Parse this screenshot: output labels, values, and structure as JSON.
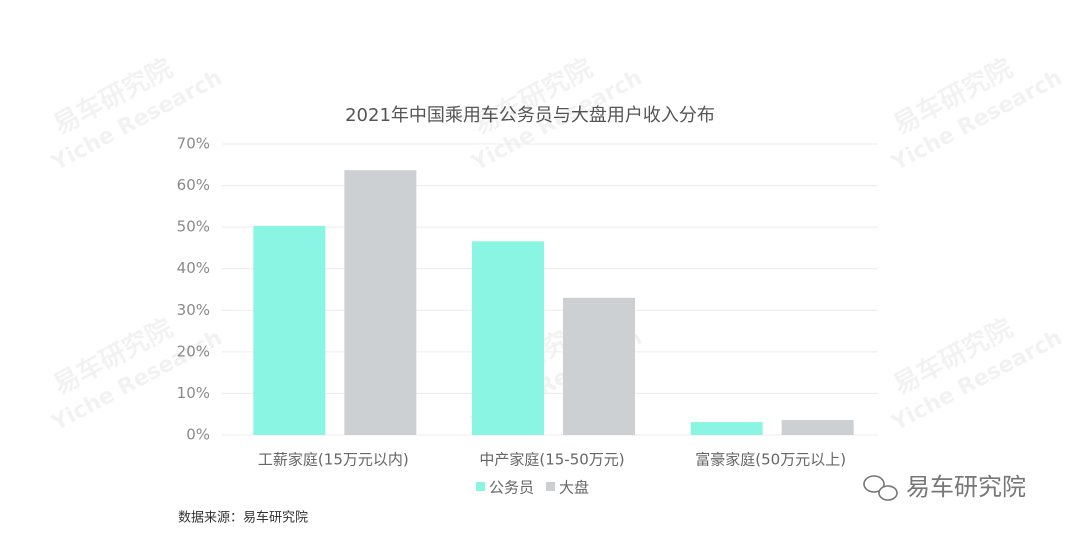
{
  "chart_data": {
    "type": "bar",
    "title": "2021年中国乘用车公务员与大盘用户收入分布",
    "categories": [
      "工薪家庭(15万元以内)",
      "中产家庭(15-50万元)",
      "富豪家庭(50万元以上)"
    ],
    "series": [
      {
        "name": "公务员",
        "color": "#8af5e3",
        "values": [
          50.3,
          46.6,
          3.1
        ]
      },
      {
        "name": "大盘",
        "color": "#cdd0d3",
        "values": [
          63.7,
          33.0,
          3.6
        ]
      }
    ],
    "ylim": [
      0,
      70
    ],
    "yticks": [
      {
        "value": 0,
        "label": "0%"
      },
      {
        "value": 10,
        "label": "10%"
      },
      {
        "value": 20,
        "label": "20%"
      },
      {
        "value": 30,
        "label": "30%"
      },
      {
        "value": 40,
        "label": "40%"
      },
      {
        "value": 50,
        "label": "50%"
      },
      {
        "value": 60,
        "label": "60%"
      },
      {
        "value": 70,
        "label": "70%"
      }
    ],
    "grid": true,
    "legend": "bottom",
    "source": "数据来源：易车研究院",
    "brand": "易车研究院",
    "watermark": [
      "易车研究院",
      "Yiche Research"
    ]
  }
}
